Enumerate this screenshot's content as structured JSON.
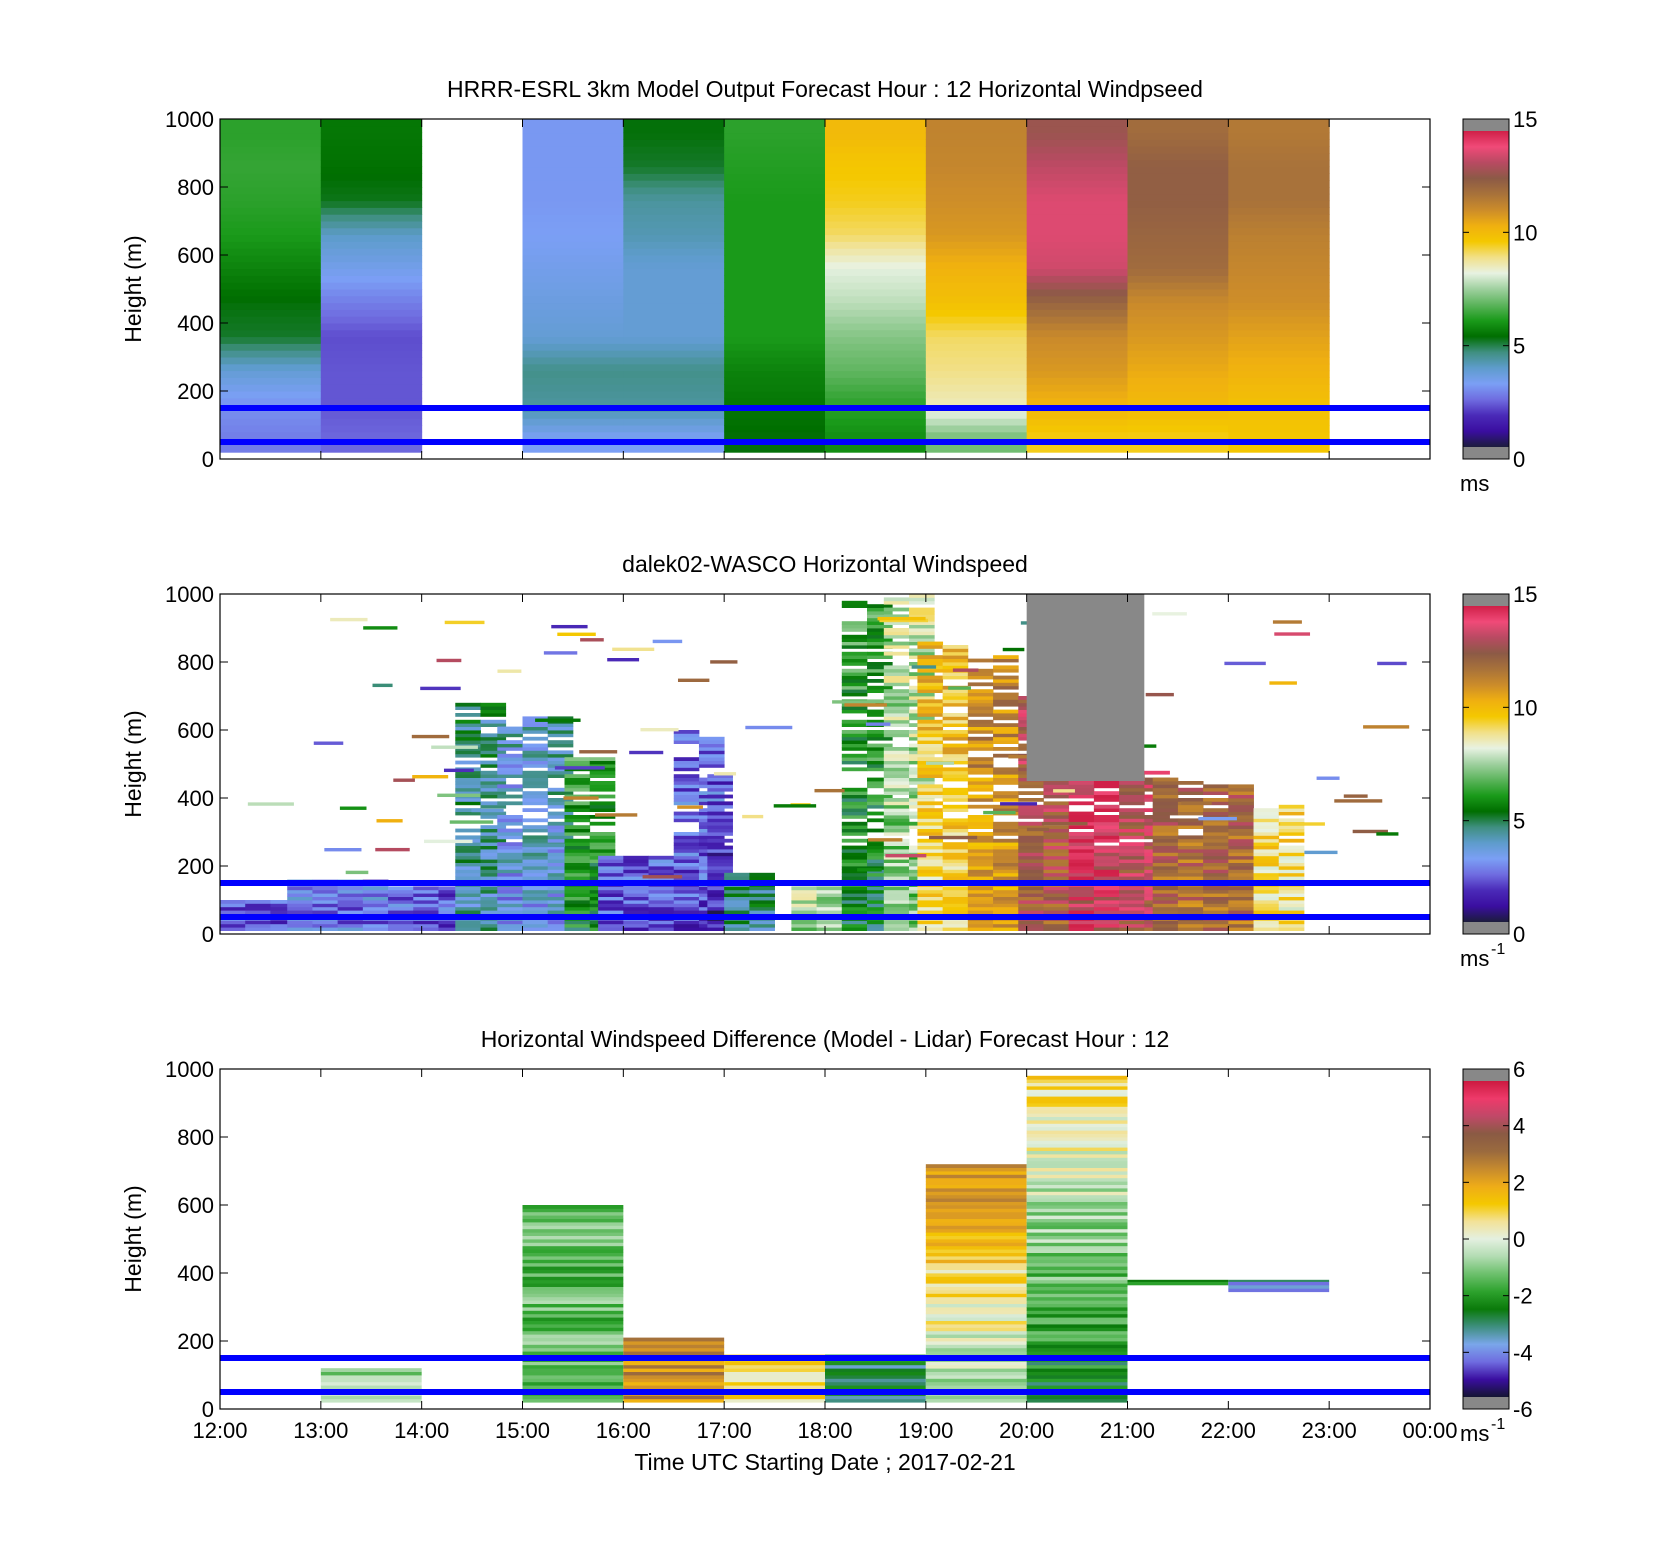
{
  "palette": {
    "speed": [
      "#1c1c3c",
      "#3a0ea0",
      "#4a2ab8",
      "#6f6ce0",
      "#7b9ff5",
      "#5e9ccc",
      "#3f8f80",
      "#006e00",
      "#1a9a1a",
      "#5cb45c",
      "#9fd09f",
      "#e8f2e2",
      "#f2e088",
      "#f4c800",
      "#f0b010",
      "#cc8c2a",
      "#a8723a",
      "#8c5a46",
      "#b84a62",
      "#f04a78",
      "#d02048"
    ],
    "diff": [
      "#141432",
      "#3a0ea0",
      "#6f6ce0",
      "#7aa6ea",
      "#3f8f80",
      "#0a7a0a",
      "#2da22d",
      "#6cc06c",
      "#b2dcb2",
      "#e4f0e0",
      "#f3e298",
      "#f4c800",
      "#eeac18",
      "#c68a2e",
      "#9a6a3e",
      "#8a5a44",
      "#c04868",
      "#ee3a6a",
      "#cc1a40"
    ],
    "missing": "#888888",
    "reference_lines": "#0000ff"
  },
  "x_ticks": [
    "12:00",
    "13:00",
    "14:00",
    "15:00",
    "16:00",
    "17:00",
    "18:00",
    "19:00",
    "20:00",
    "21:00",
    "22:00",
    "23:00",
    "00:00"
  ],
  "y_ticks": [
    "0",
    "200",
    "400",
    "600",
    "800",
    "1000"
  ],
  "x_label": "Time UTC  Starting Date ; 2017-02-21",
  "reference_heights_m": [
    50,
    150
  ],
  "chart_data": [
    {
      "type": "heatmap",
      "title": "HRRR-ESRL 3km Model Output   Forecast Hour : 12 Horizontal Windpseed",
      "ylabel": "Height (m)",
      "xlim": [
        "12:00",
        "00:00"
      ],
      "ylim": [
        0,
        1000
      ],
      "colorbar": {
        "label": "ms",
        "ticks": [
          "0",
          "5",
          "10",
          "15"
        ],
        "range": [
          0,
          15
        ]
      },
      "hourly_profiles_ms": [
        {
          "hour": "12:00",
          "values": {
            "50": 2.5,
            "150": 2.8,
            "250": 3.6,
            "350": 5.0,
            "450": 5.2,
            "550": 5.6,
            "650": 6.0,
            "750": 6.2,
            "850": 6.3,
            "950": 6.2
          }
        },
        {
          "hour": "13:00",
          "values": {
            "50": 2.2,
            "150": 2.0,
            "250": 2.0,
            "350": 1.9,
            "450": 2.5,
            "550": 3.2,
            "650": 3.8,
            "750": 5.1,
            "850": 5.3,
            "950": 5.4
          }
        },
        {
          "hour": "15:00",
          "values": {
            "50": 3.0,
            "150": 4.2,
            "250": 4.4,
            "350": 3.6,
            "450": 3.4,
            "550": 3.2,
            "650": 3.0,
            "750": 2.9,
            "850": 2.9,
            "950": 2.9
          }
        },
        {
          "hour": "16:00",
          "values": {
            "50": 3.0,
            "150": 4.2,
            "250": 4.4,
            "350": 3.6,
            "450": 3.6,
            "550": 3.6,
            "650": 4.0,
            "750": 4.2,
            "850": 5.0,
            "950": 5.2
          }
        },
        {
          "hour": "17:00",
          "values": {
            "50": 5.2,
            "150": 5.4,
            "250": 5.6,
            "350": 6.0,
            "450": 6.0,
            "550": 6.0,
            "650": 6.0,
            "750": 6.0,
            "850": 6.1,
            "950": 6.2
          }
        },
        {
          "hour": "18:00",
          "values": {
            "50": 5.8,
            "150": 6.2,
            "250": 6.8,
            "350": 7.2,
            "450": 7.8,
            "550": 8.2,
            "650": 9.2,
            "750": 9.6,
            "850": 9.8,
            "950": 10.2
          }
        },
        {
          "hour": "19:00",
          "values": {
            "50": 7.0,
            "150": 8.6,
            "250": 9.0,
            "350": 9.2,
            "450": 10.0,
            "550": 10.4,
            "650": 11.0,
            "750": 11.2,
            "850": 11.4,
            "950": 11.5
          }
        },
        {
          "hour": "20:00",
          "values": {
            "50": 9.6,
            "150": 10.4,
            "250": 11.0,
            "350": 11.3,
            "450": 12.4,
            "550": 13.8,
            "650": 14.0,
            "750": 14.0,
            "850": 13.6,
            "950": 13.0
          }
        },
        {
          "hour": "21:00",
          "values": {
            "50": 9.6,
            "150": 10.2,
            "250": 10.6,
            "350": 11.0,
            "450": 11.3,
            "550": 12.2,
            "650": 12.4,
            "750": 12.6,
            "850": 12.6,
            "950": 12.2
          }
        },
        {
          "hour": "22:00",
          "values": {
            "50": 9.8,
            "150": 10.0,
            "250": 10.4,
            "350": 10.8,
            "450": 11.2,
            "550": 11.4,
            "650": 11.6,
            "750": 12.0,
            "850": 12.0,
            "950": 11.8
          }
        }
      ]
    },
    {
      "type": "heatmap",
      "title": "dalek02-WASCO  Horizontal Windspeed",
      "ylabel": "Height (m)",
      "xlim": [
        "12:00",
        "00:00"
      ],
      "ylim": [
        0,
        1000
      ],
      "colorbar": {
        "label": "ms",
        "label_superscript": "-1",
        "ticks": [
          "0",
          "5",
          "10",
          "15"
        ],
        "range": [
          0,
          15
        ]
      },
      "observed_columns_ms": [
        {
          "start": "12:00",
          "end": "12:40",
          "top_m": 100,
          "base_speed": 1.8
        },
        {
          "start": "12:40",
          "end": "13:30",
          "top_m": 160,
          "base_speed": 2.5
        },
        {
          "start": "13:40",
          "end": "14:20",
          "top_m": 140,
          "base_speed": 2.0
        },
        {
          "start": "14:20",
          "end": "14:45",
          "top_m": 680,
          "base_speed": 3.8
        },
        {
          "start": "14:45",
          "end": "15:00",
          "top_m": 620,
          "base_speed": 3.0
        },
        {
          "start": "15:00",
          "end": "15:25",
          "top_m": 640,
          "base_speed": 3.2
        },
        {
          "start": "15:25",
          "end": "15:45",
          "top_m": 520,
          "base_speed": 5.5
        },
        {
          "start": "15:45",
          "end": "16:30",
          "top_m": 230,
          "base_speed": 2.0
        },
        {
          "start": "16:30",
          "end": "16:50",
          "top_m": 600,
          "base_speed": 1.8
        },
        {
          "start": "16:50",
          "end": "17:00",
          "top_m": 470,
          "base_speed": 1.2
        },
        {
          "start": "17:00",
          "end": "17:25",
          "top_m": 180,
          "base_speed": 4.5
        },
        {
          "start": "17:40",
          "end": "18:10",
          "top_m": 140,
          "base_speed": 7.5
        },
        {
          "start": "18:10",
          "end": "18:35",
          "top_m": 980,
          "base_speed": 5.2
        },
        {
          "start": "18:35",
          "end": "18:55",
          "top_m": 1000,
          "base_speed": 7.0
        },
        {
          "start": "18:55",
          "end": "19:25",
          "top_m": 860,
          "base_speed": 9.2
        },
        {
          "start": "19:25",
          "end": "19:55",
          "top_m": 820,
          "base_speed": 10.6
        },
        {
          "start": "19:55",
          "end": "20:25",
          "top_m": 700,
          "base_speed": 12.5
        },
        {
          "start": "20:25",
          "end": "20:55",
          "top_m": 680,
          "base_speed": 13.8
        },
        {
          "start": "20:55",
          "end": "21:15",
          "top_m": 480,
          "base_speed": 13.0
        },
        {
          "start": "21:15",
          "end": "22:15",
          "top_m": 460,
          "base_speed": 12.0
        },
        {
          "start": "22:15",
          "end": "22:45",
          "top_m": 380,
          "base_speed": 9.0
        }
      ],
      "missing_region": {
        "start": "20:00",
        "end": "21:10",
        "bottom_m": 450,
        "top_m": 1000
      }
    },
    {
      "type": "heatmap",
      "title": "Horizontal Windspeed Difference (Model - Lidar) Forecast Hour : 12",
      "ylabel": "Height (m)",
      "xlabel": "Time UTC  Starting Date ; 2017-02-21",
      "xlim": [
        "12:00",
        "00:00"
      ],
      "ylim": [
        0,
        1000
      ],
      "colorbar": {
        "label": "ms",
        "label_superscript": "-1",
        "ticks": [
          "-6",
          "-4",
          "-2",
          "0",
          "2",
          "4",
          "6"
        ],
        "range": [
          -6,
          6
        ]
      },
      "difference_blocks_ms": [
        {
          "start": "13:00",
          "end": "14:00",
          "bottom_m": 20,
          "top_m": 120,
          "value": -1.0
        },
        {
          "start": "15:00",
          "end": "16:00",
          "bottom_m": 20,
          "top_m": 600,
          "value": -1.5
        },
        {
          "start": "16:00",
          "end": "17:00",
          "bottom_m": 20,
          "top_m": 210,
          "value": 2.5
        },
        {
          "start": "17:00",
          "end": "18:00",
          "bottom_m": 20,
          "top_m": 160,
          "value": 1.0
        },
        {
          "start": "18:00",
          "end": "19:00",
          "bottom_m": 20,
          "top_m": 160,
          "value": -3.0
        },
        {
          "start": "19:00",
          "end": "20:00",
          "bottom_m": 20,
          "top_m": 720,
          "value": 0.8
        },
        {
          "start": "20:00",
          "end": "21:00",
          "bottom_m": 20,
          "top_m": 980,
          "value": -1.0
        },
        {
          "start": "21:00",
          "end": "22:00",
          "bottom_m": 365,
          "top_m": 380,
          "value": -2.5
        },
        {
          "start": "22:00",
          "end": "23:00",
          "bottom_m": 345,
          "top_m": 380,
          "value": -4.0
        }
      ]
    }
  ]
}
